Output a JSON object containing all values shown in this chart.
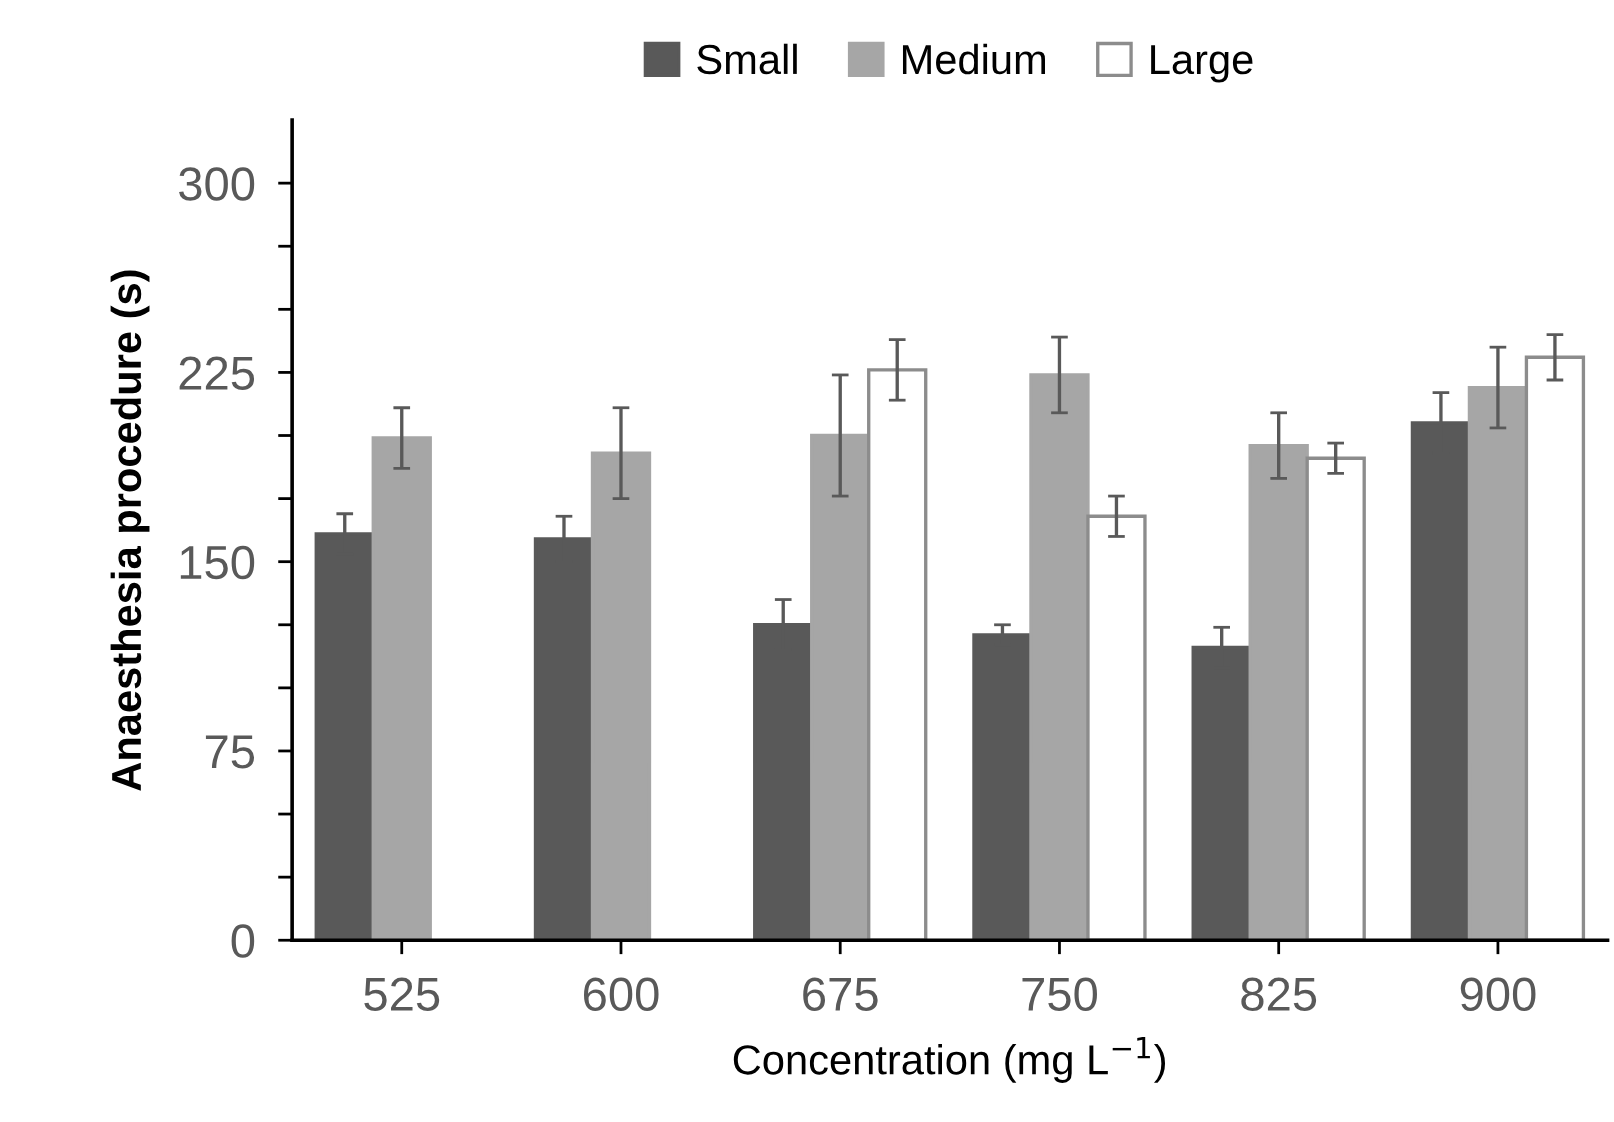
{
  "chart_data": {
    "type": "bar",
    "xlabel": "Concentration (mg L$^{−1}$)",
    "ylabel": "Anaesthesia procedure (s)",
    "categories": [
      "525",
      "600",
      "675",
      "750",
      "825",
      "900"
    ],
    "series": [
      {
        "name": "Small",
        "color": "#595959",
        "values": [
          161,
          159,
          125,
          121,
          116,
          205
        ],
        "errors": [
          8,
          9,
          10,
          4,
          8,
          12
        ]
      },
      {
        "name": "Medium",
        "color": "#a6a6a6",
        "values": [
          199,
          193,
          200,
          224,
          196,
          219
        ],
        "errors": [
          12,
          18,
          24,
          15,
          13,
          16
        ]
      },
      {
        "name": "Large",
        "color": "#ffffff",
        "values": [
          null,
          null,
          226,
          168,
          191,
          231
        ],
        "errors": [
          null,
          null,
          12,
          8,
          6,
          9
        ]
      }
    ],
    "ylim": [
      0,
      325
    ],
    "yticks": [
      0,
      {
        "value": 25,
        "label": null
      },
      {
        "value": 50,
        "label": null
      },
      75,
      {
        "value": 100,
        "label": null
      },
      {
        "value": 125,
        "label": null
      },
      150,
      {
        "value": 175,
        "label": null
      },
      {
        "value": 200,
        "label": null
      },
      225,
      {
        "value": 250,
        "label": null
      },
      {
        "value": 275,
        "label": null
      },
      300
    ],
    "grid": false,
    "legend": "top"
  }
}
